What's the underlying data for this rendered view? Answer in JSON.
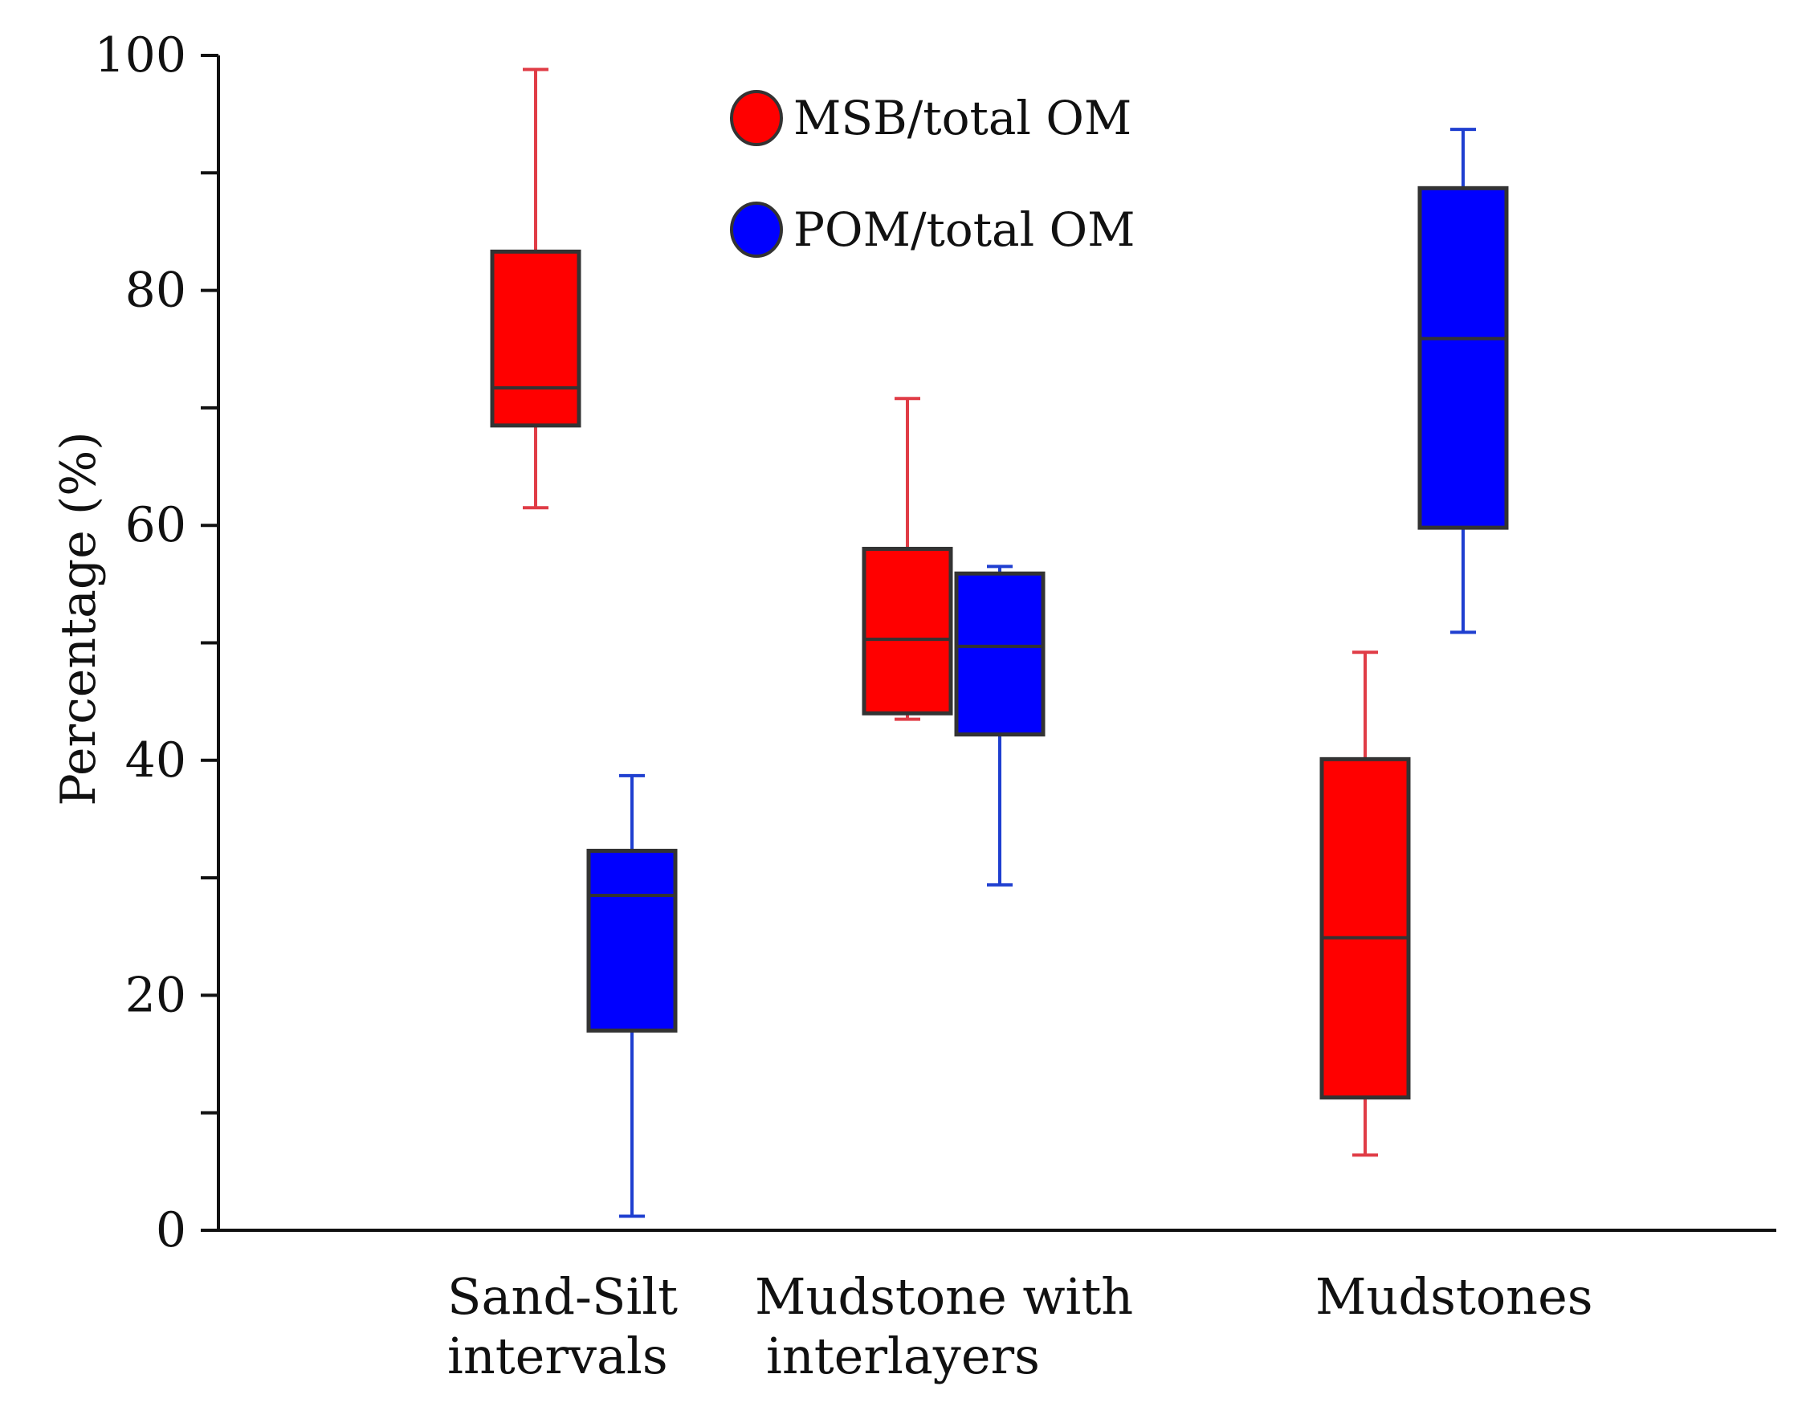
{
  "chart_data": {
    "type": "boxplot",
    "title": "",
    "xlabel": "",
    "ylabel": "Percentage (%)",
    "ylim": [
      0,
      100
    ],
    "yticks": [
      0,
      20,
      40,
      60,
      80,
      100
    ],
    "yminor_ticks": [
      10,
      30,
      50,
      70,
      90
    ],
    "legend_position": "top-center",
    "categories": [
      {
        "lines": [
          "Sand-Silt",
          "intervals"
        ]
      },
      {
        "lines": [
          "Mudstone with",
          "interlayers"
        ]
      },
      {
        "lines": [
          "Mudstones"
        ]
      }
    ],
    "series": [
      {
        "name": "MSB/total OM",
        "color": "#ff0000",
        "whisker_color": "#e03c46",
        "boxes": [
          {
            "min": 61.5,
            "q1": 68.5,
            "median": 71.7,
            "q3": 83.3,
            "max": 98.8
          },
          {
            "min": 43.5,
            "q1": 44.0,
            "median": 50.3,
            "q3": 58.0,
            "max": 70.8
          },
          {
            "min": 6.4,
            "q1": 11.3,
            "median": 24.9,
            "q3": 40.1,
            "max": 49.2
          }
        ]
      },
      {
        "name": "POM/total OM",
        "color": "#0000ff",
        "whisker_color": "#1f3fd0",
        "boxes": [
          {
            "min": 1.2,
            "q1": 17.0,
            "median": 28.5,
            "q3": 32.3,
            "max": 38.7
          },
          {
            "min": 29.4,
            "q1": 42.2,
            "median": 49.7,
            "q3": 55.9,
            "max": 56.5
          },
          {
            "min": 50.9,
            "q1": 59.8,
            "median": 75.9,
            "q3": 88.7,
            "max": 93.7
          }
        ]
      }
    ]
  }
}
